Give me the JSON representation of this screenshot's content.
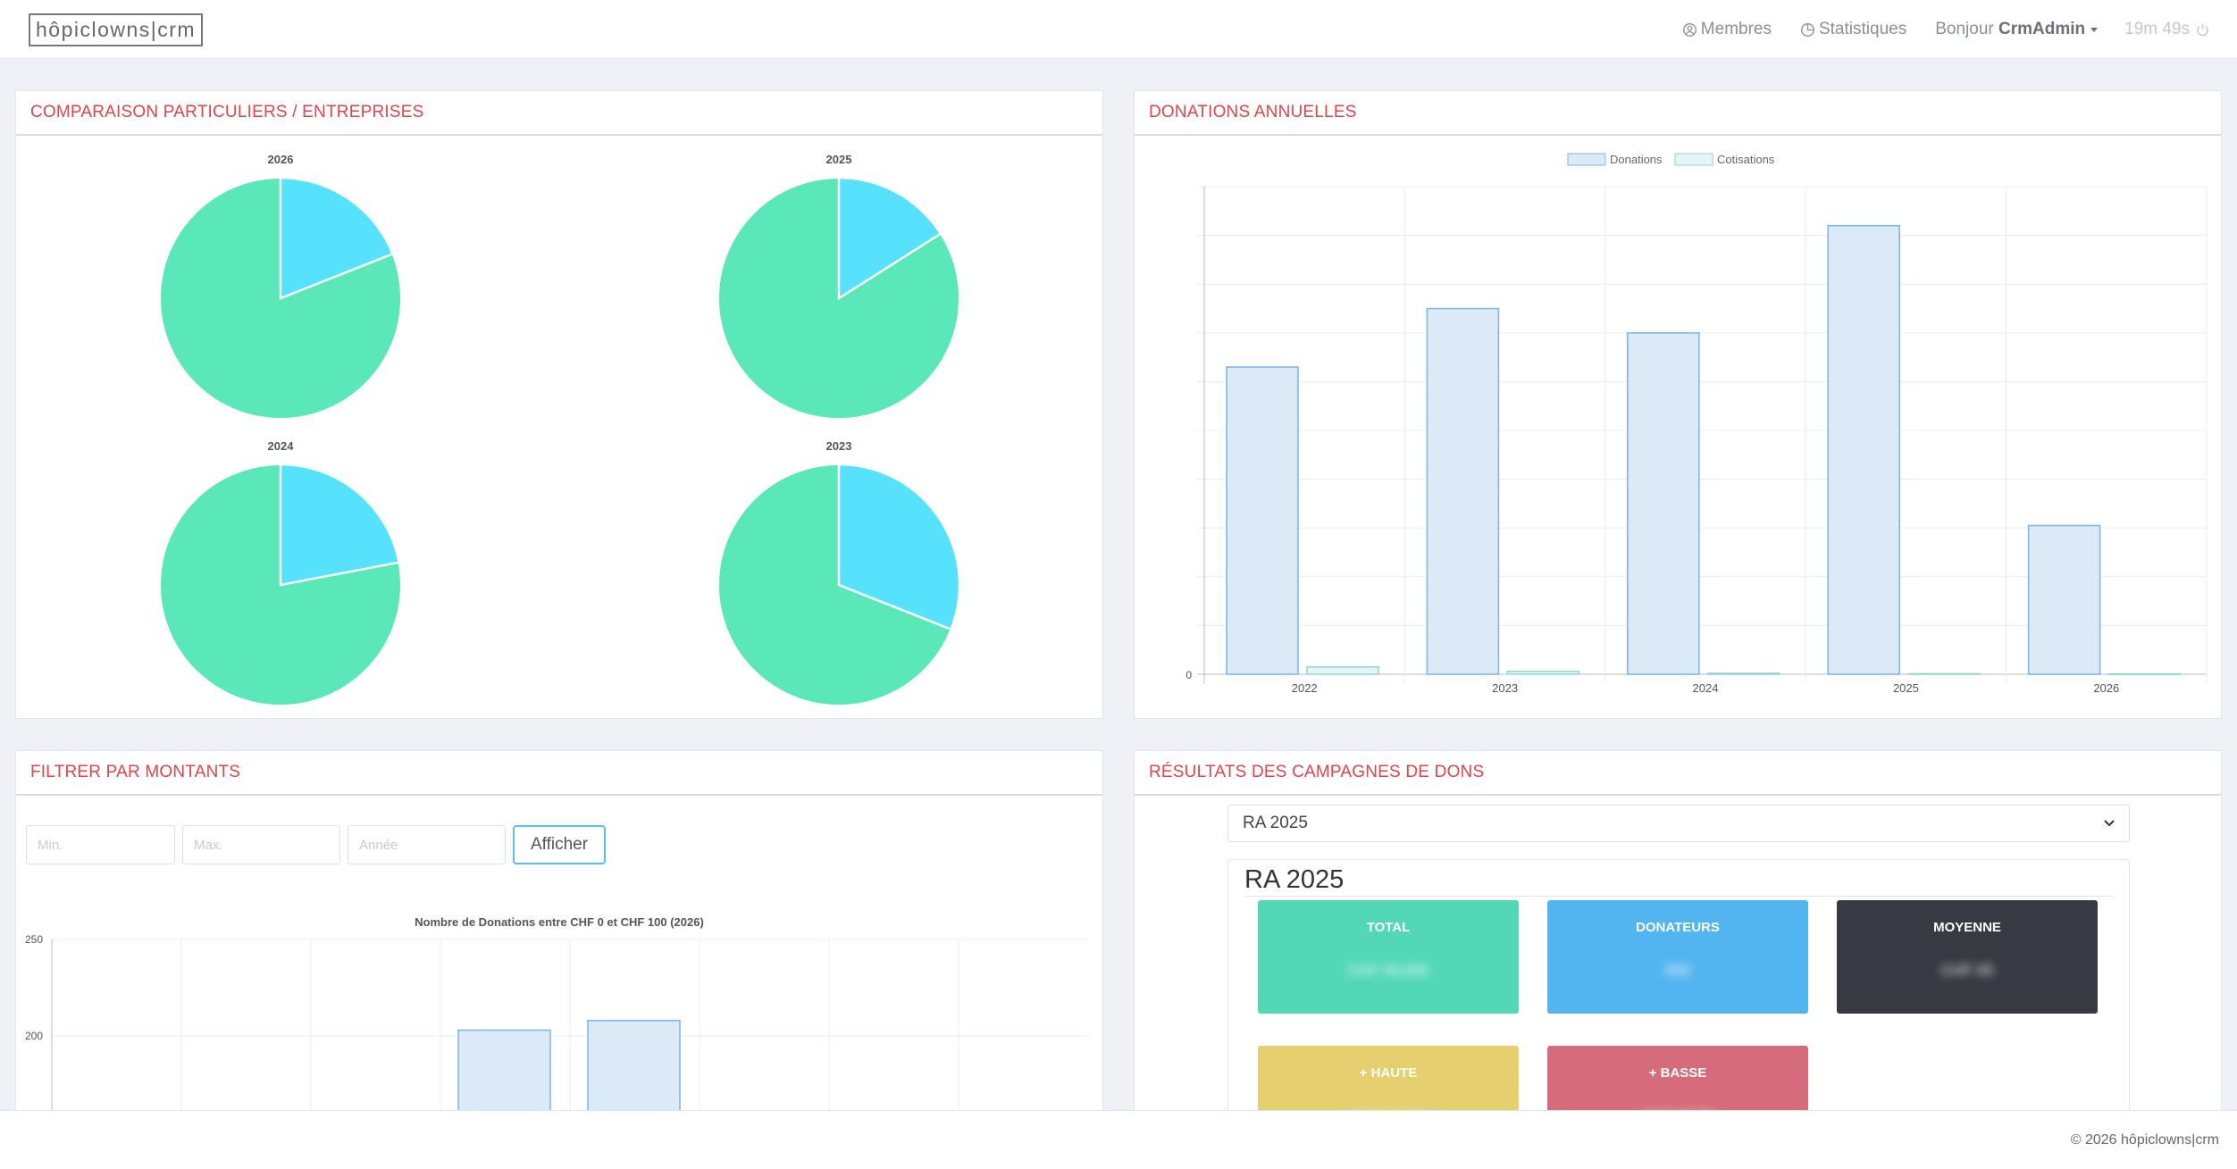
{
  "app": {
    "logo": "hôpiclowns|crm"
  },
  "nav": {
    "members_label": "Membres",
    "stats_label": "Statistiques",
    "greeting": "Bonjour",
    "username": "CrmAdmin",
    "session_timer": "19m 49s"
  },
  "panels": {
    "comparison_title": "COMPARAISON PARTICULIERS / ENTREPRISES",
    "annual_title": "DONATIONS ANNUELLES",
    "filter_title": "FILTRER PAR MONTANTS",
    "campaign_title": "RÉSULTATS DES CAMPAGNES DE DONS"
  },
  "colors": {
    "accent_red": "#e0434a",
    "pie_particuliers": "#5be8b8",
    "pie_entreprises": "#56e1fd",
    "bar_fill": "#dceaf8",
    "bar_stroke": "#7bb3e8"
  },
  "filter": {
    "min_placeholder": "Min.",
    "max_placeholder": "Max.",
    "year_placeholder": "Année",
    "submit_label": "Afficher"
  },
  "campaign": {
    "selected": "RA 2025",
    "title": "RA 2025",
    "stats": [
      {
        "label": "TOTAL",
        "value": "CHF 00,000",
        "color": "#52d8b5"
      },
      {
        "label": "DONATEURS",
        "value": "000",
        "color": "#53b5ef"
      },
      {
        "label": "MOYENNE",
        "value": "CHF 00",
        "color": "#383a42"
      },
      {
        "label": "+ HAUTE",
        "value": "CHF 0,000",
        "color": "#e5cf6e"
      },
      {
        "label": "+ BASSE",
        "value": "CHF 00.00",
        "color": "#d66b7b"
      }
    ]
  },
  "footer": {
    "copyright": "© 2026 hôpiclowns|crm"
  },
  "chart_data": [
    {
      "type": "pie",
      "pies": [
        {
          "title": "2026",
          "entreprises": 0.19,
          "particuliers": 0.81
        },
        {
          "title": "2025",
          "entreprises": 0.16,
          "particuliers": 0.84
        },
        {
          "title": "2024",
          "entreprises": 0.22,
          "particuliers": 0.78
        },
        {
          "title": "2023",
          "entreprises": 0.31,
          "particuliers": 0.69
        }
      ]
    },
    {
      "type": "bar",
      "categories": [
        "2022",
        "2023",
        "2024",
        "2025",
        "2026"
      ],
      "series": [
        {
          "name": "Donations",
          "values": [
            630000,
            750000,
            700000,
            920000,
            305000
          ]
        },
        {
          "name": "Cotisations",
          "values": [
            15000,
            6000,
            2000,
            1000,
            500
          ]
        }
      ],
      "ylim": [
        0,
        1000000
      ],
      "yticks": [
        0,
        100000,
        200000,
        300000,
        400000,
        500000,
        600000,
        700000,
        800000,
        900000,
        1000000
      ],
      "ytick_labels_visible": [
        "0"
      ],
      "legend": "top-center",
      "grid": true
    },
    {
      "type": "bar",
      "title": "Nombre de Donations entre CHF 0 et CHF 100 (2026)",
      "yticks_visible": [
        "250",
        "200"
      ],
      "ylim_visible": [
        160,
        250
      ],
      "values_visible": [
        203,
        208
      ],
      "grid": true
    }
  ]
}
